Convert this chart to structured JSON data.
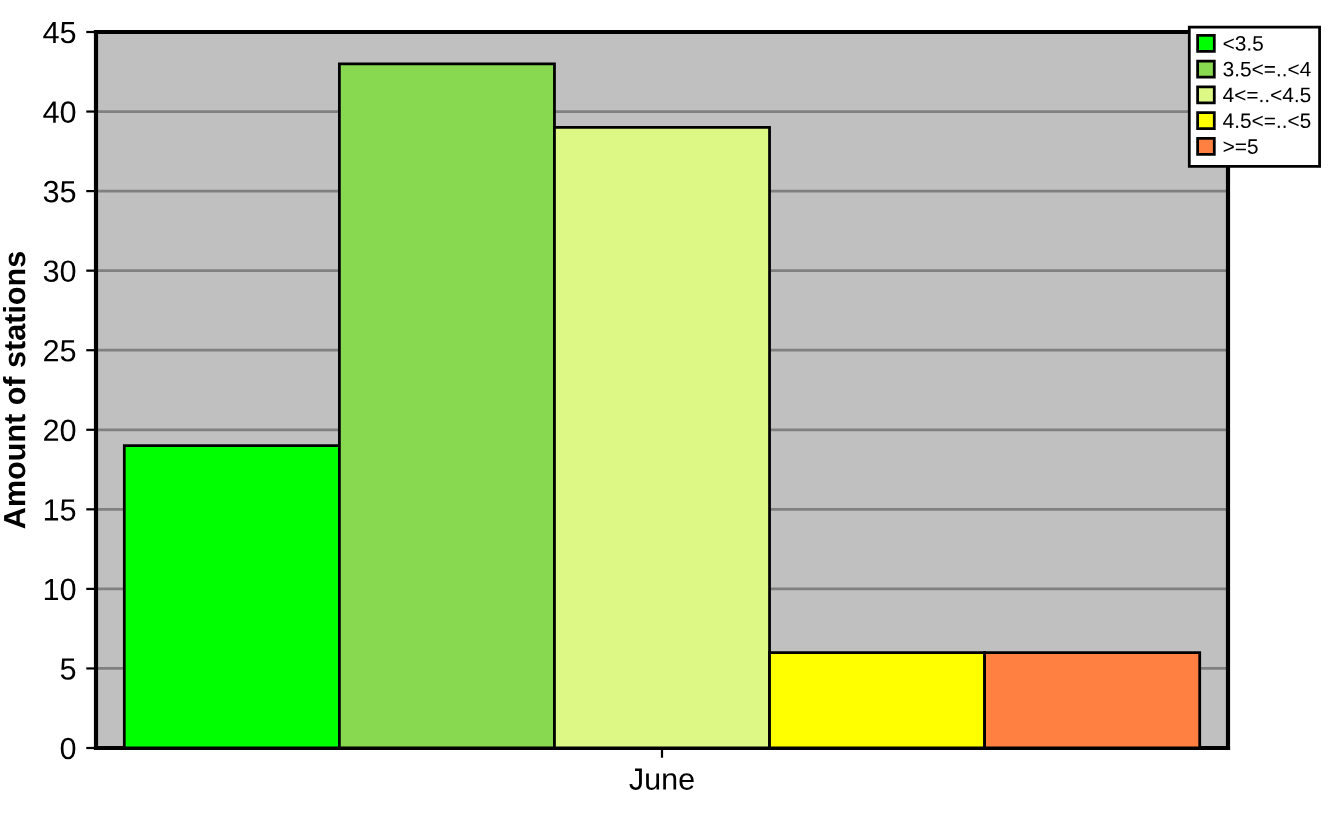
{
  "chart_data": {
    "type": "bar",
    "ylabel": "Amount of stations",
    "categories": [
      "June"
    ],
    "series": [
      {
        "name": "<3.5",
        "color": "#00ff00",
        "values": [
          19
        ]
      },
      {
        "name": "3.5<=..<4",
        "color": "#88d850",
        "values": [
          43
        ]
      },
      {
        "name": "4<=..<4.5",
        "color": "#def886",
        "values": [
          39
        ]
      },
      {
        "name": "4.5<=..<5",
        "color": "#ffff00",
        "values": [
          6
        ]
      },
      {
        "name": ">=5",
        "color": "#ff8040",
        "values": [
          6
        ]
      }
    ],
    "ylim": [
      0,
      45
    ],
    "yticks": [
      0,
      5,
      10,
      15,
      20,
      25,
      30,
      35,
      40,
      45
    ],
    "grid": "y",
    "legend": "top right"
  }
}
